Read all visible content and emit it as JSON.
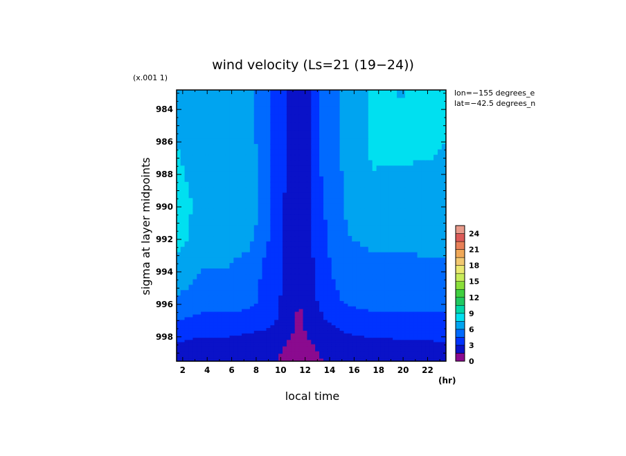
{
  "chart_data": {
    "type": "heatmap",
    "title": "wind velocity (Ls=21 (19−24))",
    "xlabel": "local time",
    "x_unit": "(hr)",
    "ylabel": "sigma at layer midpoints",
    "y_scale_note": "(x.001 1)",
    "annotations": [
      "lon=−155 degrees_e",
      "lat=−42.5 degrees_n"
    ],
    "x_ticks": [
      "2",
      "4",
      "6",
      "8",
      "10",
      "12",
      "14",
      "16",
      "18",
      "20",
      "22"
    ],
    "y_ticks": [
      "984",
      "986",
      "988",
      "990",
      "992",
      "994",
      "996",
      "998"
    ],
    "xlim": [
      1.5,
      23.5
    ],
    "ylim": [
      999.5,
      982.8
    ],
    "x": [
      1.5,
      3.5,
      5.5,
      7.5,
      9.5,
      11.5,
      13.5,
      15.5,
      17.5,
      19.5,
      21.5,
      23.5
    ],
    "y": [
      982.8,
      985.8,
      987.8,
      989.8,
      991.8,
      993.8,
      995.8,
      996.8,
      997.8,
      998.6,
      999.5
    ],
    "z": [
      [
        7.5,
        6.5,
        6.8,
        6.5,
        4.2,
        1.5,
        4.8,
        6.4,
        7.8,
        7.4,
        7.5,
        7.5
      ],
      [
        7.5,
        6.5,
        6.8,
        6.5,
        4.2,
        1.5,
        4.8,
        6.4,
        7.8,
        8.3,
        8.0,
        7.5
      ],
      [
        7.8,
        6.8,
        6.5,
        7.0,
        4.2,
        1.5,
        4.8,
        6.4,
        7.5,
        7.3,
        7.3,
        7.3
      ],
      [
        8.0,
        7.2,
        7.0,
        7.2,
        4.0,
        1.5,
        4.5,
        6.3,
        7.0,
        7.0,
        7.0,
        7.0
      ],
      [
        8.3,
        6.8,
        7.0,
        6.5,
        3.9,
        1.6,
        4.2,
        6.0,
        6.2,
        6.3,
        6.3,
        6.3
      ],
      [
        7.0,
        6.0,
        6.0,
        5.2,
        3.7,
        1.5,
        4.0,
        5.6,
        5.8,
        5.7,
        5.8,
        5.8
      ],
      [
        5.8,
        5.3,
        5.2,
        5.0,
        3.5,
        1.4,
        3.5,
        4.8,
        5.0,
        4.9,
        4.9,
        5.0
      ],
      [
        4.8,
        4.2,
        4.2,
        4.0,
        3.2,
        1.3,
        3.0,
        3.8,
        4.2,
        4.3,
        4.3,
        4.3
      ],
      [
        3.5,
        3.2,
        3.2,
        3.0,
        2.7,
        1.1,
        2.5,
        3.0,
        3.3,
        3.3,
        3.3,
        3.5
      ],
      [
        2.8,
        2.4,
        2.5,
        2.4,
        2.0,
        0.8,
        1.9,
        2.4,
        2.5,
        2.6,
        2.6,
        2.8
      ],
      [
        2.2,
        1.9,
        2.0,
        2.0,
        1.6,
        0.6,
        1.5,
        1.9,
        2.0,
        2.1,
        2.1,
        2.2
      ]
    ],
    "levels": [
      0,
      1.5,
      3,
      4.5,
      6,
      7.5,
      9,
      10.5,
      12,
      13.5,
      15,
      16.5,
      18,
      19.5,
      21,
      22.5,
      24,
      25.5
    ],
    "colorbar": {
      "ticks": [
        "0",
        "3",
        "6",
        "9",
        "12",
        "15",
        "18",
        "21",
        "24"
      ],
      "colors": [
        "#8a0a8f",
        "#0a12c8",
        "#0033ff",
        "#006aff",
        "#00a4f0",
        "#00e0f0",
        "#00d8a8",
        "#20c860",
        "#40d040",
        "#8adf3a",
        "#c8ec5a",
        "#eae870",
        "#f2c870",
        "#f0a858",
        "#e88058",
        "#dc5a58",
        "#e89a8a"
      ]
    },
    "grid": false
  }
}
